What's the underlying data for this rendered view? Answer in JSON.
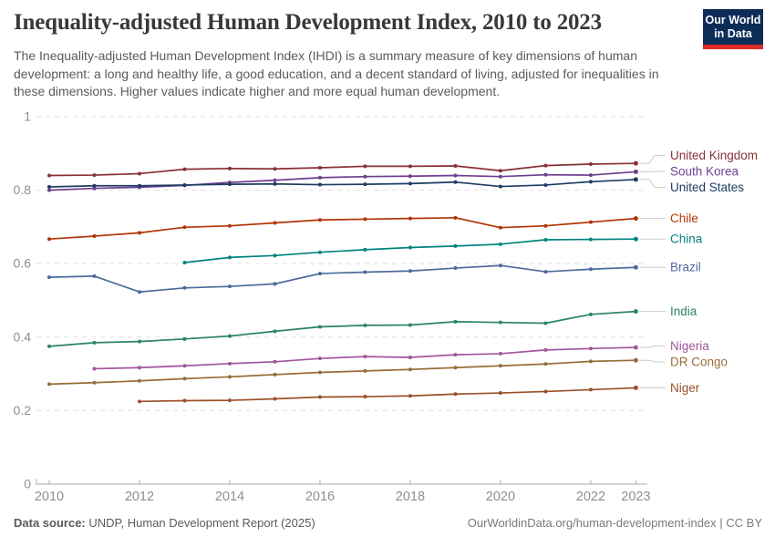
{
  "header": {
    "title": "Inequality-adjusted Human Development Index, 2010 to 2023",
    "subtitle": "The Inequality-adjusted Human Development Index (IHDI) is a summary measure of key dimensions of human development: a long and healthy life, a good education, and a decent standard of living, adjusted for inequalities in these dimensions. Higher values indicate higher and more equal human development.",
    "logo": {
      "line1": "Our World",
      "line2": "in Data",
      "bg_color": "#0d2d59",
      "accent_color": "#dc2a24"
    }
  },
  "footer": {
    "source_label": "Data source:",
    "source_text": " UNDP, Human Development Report (2025)",
    "link": "OurWorldinData.org/human-development-index",
    "divider": " | ",
    "license": "CC BY"
  },
  "chart_data": {
    "type": "line",
    "title": "Inequality-adjusted Human Development Index, 2010 to 2023",
    "xlabel": "",
    "ylabel": "",
    "xlim": [
      2010,
      2023
    ],
    "ylim": [
      0,
      1
    ],
    "x_ticks": [
      2010,
      2012,
      2014,
      2016,
      2018,
      2020,
      2022,
      2023
    ],
    "y_ticks": [
      0,
      0.2,
      0.4,
      0.6,
      0.8,
      1
    ],
    "y_tick_labels": [
      "0",
      "0.2",
      "0.4",
      "0.6",
      "0.8",
      "1"
    ],
    "grid": "horizontal-dashed",
    "legend_position": "right-of-line-ends",
    "point_markers": true,
    "colors": {
      "grid_line": "#e0e0e0",
      "axis_line": "#a9a9a9",
      "tick_text": "#8f8f8f",
      "leader_line": "#cccccc"
    },
    "series": [
      {
        "name": "United Kingdom",
        "color": "#883039",
        "start_year": 2010,
        "values": [
          0.84,
          0.841,
          0.845,
          0.857,
          0.859,
          0.858,
          0.861,
          0.865,
          0.865,
          0.866,
          0.853,
          0.867,
          0.871,
          0.873
        ]
      },
      {
        "name": "South Korea",
        "color": "#6D3E91",
        "start_year": 2010,
        "values": [
          0.8,
          0.805,
          0.808,
          0.813,
          0.821,
          0.827,
          0.834,
          0.837,
          0.838,
          0.84,
          0.837,
          0.842,
          0.841,
          0.85
        ]
      },
      {
        "name": "United States",
        "color": "#1D3D63",
        "start_year": 2010,
        "values": [
          0.809,
          0.812,
          0.812,
          0.814,
          0.816,
          0.817,
          0.815,
          0.816,
          0.818,
          0.822,
          0.81,
          0.814,
          0.823,
          0.829
        ]
      },
      {
        "name": "Chile",
        "color": "#B13507",
        "start_year": 2010,
        "values": [
          0.667,
          0.675,
          0.684,
          0.699,
          0.703,
          0.711,
          0.719,
          0.721,
          0.723,
          0.725,
          0.698,
          0.703,
          0.713,
          0.723
        ]
      },
      {
        "name": "China",
        "color": "#00847E",
        "start_year": 2013,
        "values": [
          0.603,
          0.617,
          0.622,
          0.631,
          0.638,
          0.644,
          0.648,
          0.653,
          0.665,
          0.666,
          0.667
        ]
      },
      {
        "name": "Brazil",
        "color": "#4C6A9C",
        "start_year": 2010,
        "values": [
          0.563,
          0.566,
          0.523,
          0.534,
          0.538,
          0.545,
          0.573,
          0.577,
          0.58,
          0.588,
          0.595,
          0.578,
          0.585,
          0.59
        ]
      },
      {
        "name": "India",
        "color": "#2C8465",
        "start_year": 2010,
        "values": [
          0.375,
          0.385,
          0.388,
          0.395,
          0.403,
          0.416,
          0.428,
          0.432,
          0.433,
          0.442,
          0.44,
          0.438,
          0.462,
          0.47
        ]
      },
      {
        "name": "Nigeria",
        "color": "#A2559C",
        "start_year": 2011,
        "values": [
          0.314,
          0.317,
          0.322,
          0.328,
          0.333,
          0.342,
          0.347,
          0.345,
          0.352,
          0.355,
          0.365,
          0.369,
          0.372
        ]
      },
      {
        "name": "DR Congo",
        "color": "#996D39",
        "start_year": 2010,
        "values": [
          0.272,
          0.276,
          0.281,
          0.287,
          0.292,
          0.298,
          0.304,
          0.308,
          0.312,
          0.317,
          0.322,
          0.327,
          0.334,
          0.337
        ]
      },
      {
        "name": "Niger",
        "color": "#9A5129",
        "start_year": 2012,
        "values": [
          0.225,
          0.227,
          0.228,
          0.232,
          0.237,
          0.238,
          0.24,
          0.245,
          0.248,
          0.252,
          0.257,
          0.262
        ]
      }
    ]
  }
}
